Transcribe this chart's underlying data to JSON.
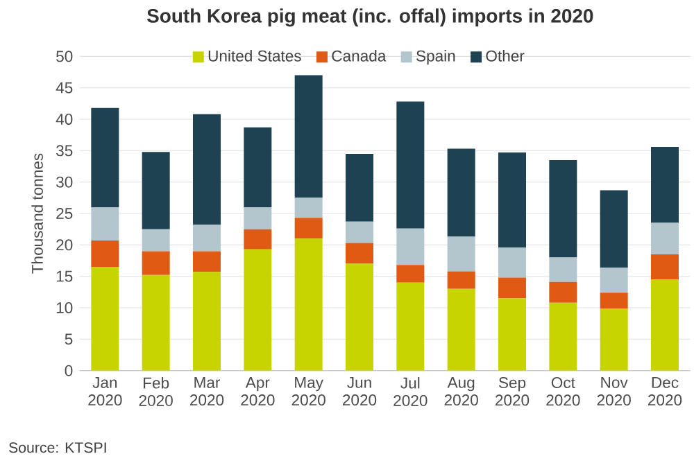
{
  "chart_data": {
    "type": "bar",
    "stacked": true,
    "title": "South Korea pig meat (inc. offal) imports in 2020",
    "ylabel": "Thousand tonnes",
    "categories": [
      "Jan 2020",
      "Feb 2020",
      "Mar 2020",
      "Apr 2020",
      "May 2020",
      "Jun 2020",
      "Jul 2020",
      "Aug 2020",
      "Sep 2020",
      "Oct 2020",
      "Nov 2020",
      "Dec 2020"
    ],
    "series": [
      {
        "name": "United States",
        "color": "#c8d400",
        "values": [
          16.5,
          15.2,
          15.7,
          19.3,
          21,
          17,
          14,
          13,
          11.5,
          10.8,
          9.9,
          14.5
        ]
      },
      {
        "name": "Canada",
        "color": "#e05a14",
        "values": [
          4.2,
          3.8,
          3.3,
          3.2,
          3.3,
          3.3,
          2.8,
          2.8,
          3.3,
          3.3,
          2.5,
          4
        ]
      },
      {
        "name": "Spain",
        "color": "#b3c6ce",
        "values": [
          5.3,
          3.5,
          4.2,
          3.5,
          3.2,
          3.4,
          5.8,
          5.5,
          4.8,
          3.9,
          4,
          5
        ]
      },
      {
        "name": "Other",
        "color": "#1f4252",
        "values": [
          15.8,
          12.3,
          17.6,
          12.7,
          19.5,
          10.8,
          20.2,
          14,
          15.1,
          15.5,
          12.3,
          12.1
        ]
      }
    ],
    "ylim": [
      0,
      50
    ],
    "yticks": [
      0,
      5,
      10,
      15,
      20,
      25,
      30,
      35,
      40,
      45,
      50
    ],
    "grid": "y",
    "legend": "top",
    "annotations": [
      "Source: KTSPI"
    ]
  }
}
